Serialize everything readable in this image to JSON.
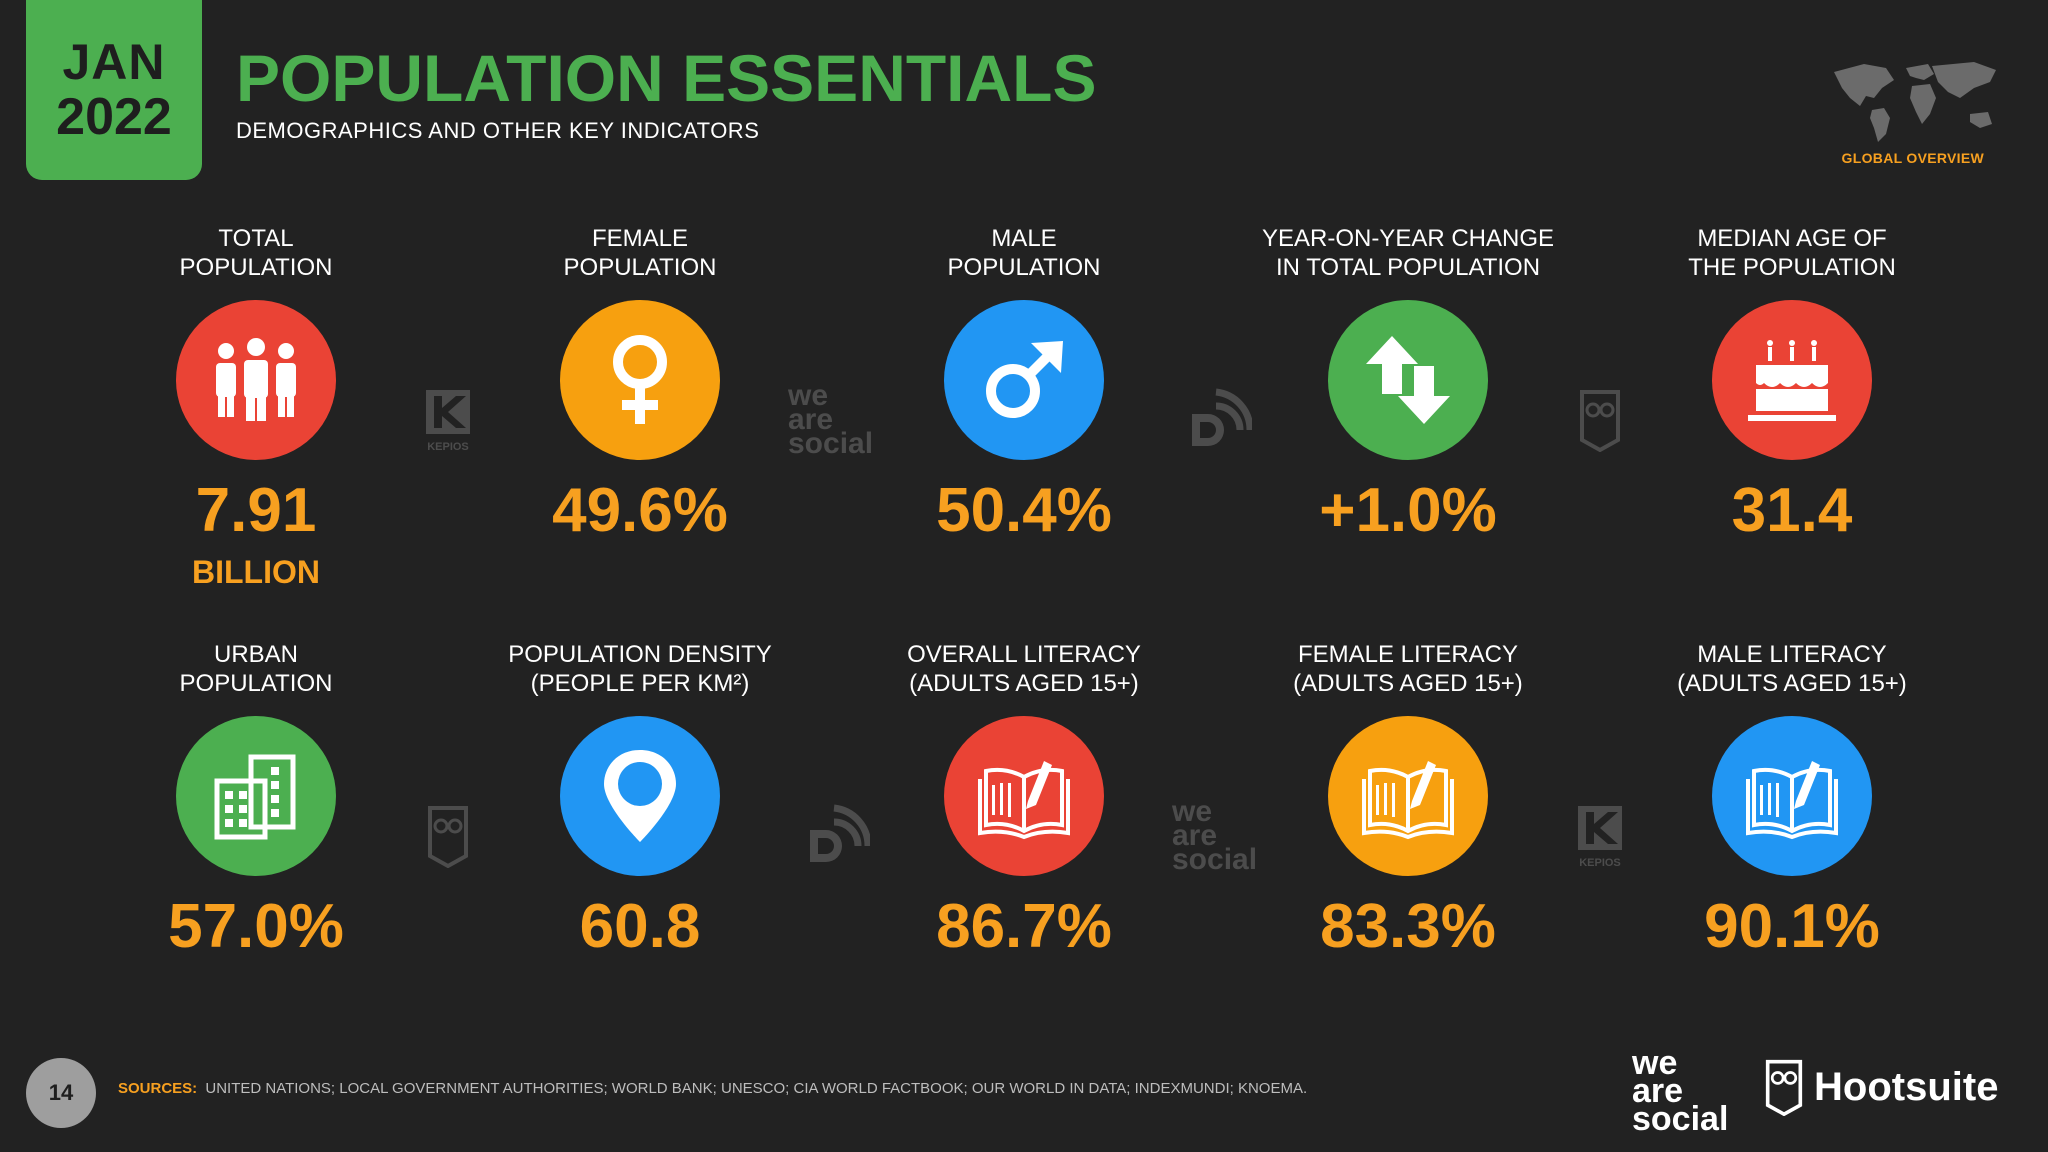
{
  "header": {
    "month": "JAN",
    "year": "2022",
    "title": "POPULATION ESSENTIALS",
    "subtitle": "DEMOGRAPHICS AND OTHER KEY INDICATORS",
    "section": "GLOBAL OVERVIEW"
  },
  "metrics": [
    {
      "label_1": "TOTAL",
      "label_2": "POPULATION",
      "value": "7.91",
      "unit": "BILLION",
      "icon": "people-icon",
      "color": "#ea4335"
    },
    {
      "label_1": "FEMALE",
      "label_2": "POPULATION",
      "value": "49.6%",
      "icon": "female-symbol-icon",
      "color": "#f7a00f"
    },
    {
      "label_1": "MALE",
      "label_2": "POPULATION",
      "value": "50.4%",
      "icon": "male-symbol-icon",
      "color": "#2196f3"
    },
    {
      "label_1": "YEAR-ON-YEAR CHANGE",
      "label_2": "IN TOTAL POPULATION",
      "value": "+1.0%",
      "icon": "up-down-arrows-icon",
      "color": "#4caf50"
    },
    {
      "label_1": "MEDIAN AGE OF",
      "label_2": "THE POPULATION",
      "value": "31.4",
      "icon": "birthday-cake-icon",
      "color": "#ea4335"
    },
    {
      "label_1": "URBAN",
      "label_2": "POPULATION",
      "value": "57.0%",
      "icon": "buildings-icon",
      "color": "#4caf50"
    },
    {
      "label_1": "POPULATION DENSITY",
      "label_2": "(PEOPLE PER KM²)",
      "value": "60.8",
      "icon": "map-pin-icon",
      "color": "#2196f3"
    },
    {
      "label_1": "OVERALL LITERACY",
      "label_2": "(ADULTS AGED 15+)",
      "value": "86.7%",
      "icon": "open-book-icon",
      "color": "#ea4335"
    },
    {
      "label_1": "FEMALE LITERACY",
      "label_2": "(ADULTS AGED 15+)",
      "value": "83.3%",
      "icon": "open-book-icon",
      "color": "#f7a00f"
    },
    {
      "label_1": "MALE LITERACY",
      "label_2": "(ADULTS AGED 15+)",
      "value": "90.1%",
      "icon": "open-book-icon",
      "color": "#2196f3"
    }
  ],
  "watermarks": {
    "kepios": "KEPIOS",
    "we_are_social": [
      "we",
      "are",
      "social"
    ]
  },
  "footer": {
    "page_number": "14",
    "sources_label": "SOURCES:",
    "sources_text": "UNITED NATIONS; LOCAL GOVERNMENT AUTHORITIES; WORLD BANK; UNESCO; CIA WORLD FACTBOOK; OUR WORLD IN DATA; INDEXMUNDI; KNOEMA.",
    "brand_1": [
      "we",
      "are",
      "social"
    ],
    "brand_2": "Hootsuite"
  }
}
